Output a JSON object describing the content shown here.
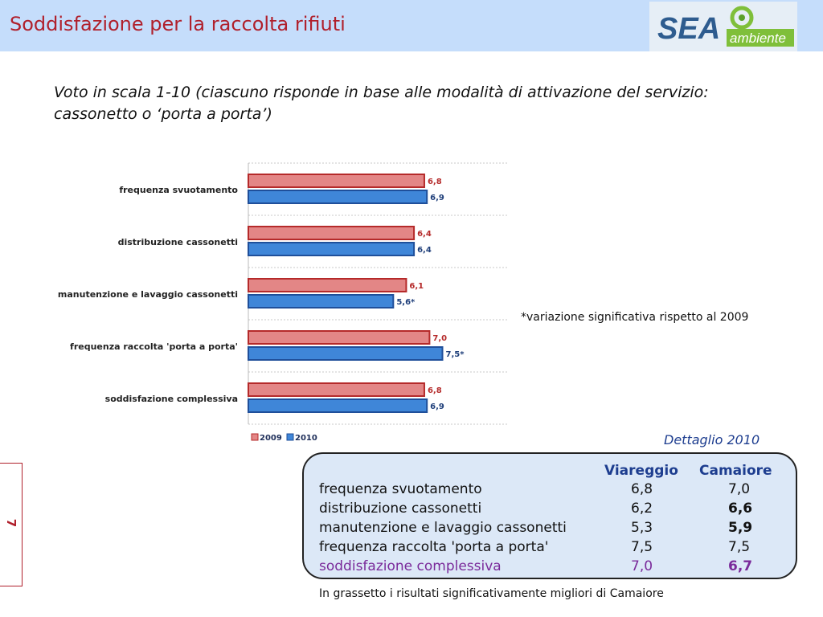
{
  "header": {
    "title": "Soddisfazione per la raccolta rifiuti"
  },
  "logo": {
    "text_sea": "SEA",
    "text_ambiente": "ambiente"
  },
  "subtitle": "Voto in scala 1-10 (ciascuno risponde in base alle modalità di attivazione del servizio: cassonetto o ‘porta a porta’)",
  "note": "*variazione significativa rispetto al 2009",
  "chart_data": {
    "type": "bar",
    "orientation": "horizontal",
    "categories": [
      "frequenza svuotamento",
      "distribuzione cassonetti",
      "manutenzione e lavaggio cassonetti",
      "frequenza raccolta 'porta a porta'",
      "soddisfazione complessiva"
    ],
    "series": [
      {
        "name": "2009",
        "values": [
          6.8,
          6.4,
          6.1,
          7.0,
          6.8
        ],
        "labels": [
          "6,8",
          "6,4",
          "6,1",
          "7,0",
          "6,8"
        ],
        "color": "#e38686"
      },
      {
        "name": "2010",
        "values": [
          6.9,
          6.4,
          5.6,
          7.5,
          6.9
        ],
        "labels": [
          "6,9",
          "6,4",
          "5,6*",
          "7,5*",
          "6,9"
        ],
        "color": "#3f86d8"
      }
    ],
    "xlim": [
      0,
      7.5
    ],
    "grid": true,
    "legend_position": "bottom-left"
  },
  "detail": {
    "caption": "Dettaglio 2010",
    "columns": [
      "Viareggio",
      "Camaiore"
    ],
    "rows": [
      {
        "label": "frequenza svuotamento",
        "viareggio": "6,8",
        "camaiore": "7,0",
        "camaiore_bold": false,
        "highlight": false
      },
      {
        "label": "distribuzione cassonetti",
        "viareggio": "6,2",
        "camaiore": "6,6",
        "camaiore_bold": true,
        "highlight": false
      },
      {
        "label": "manutenzione e lavaggio cassonetti",
        "viareggio": "5,3",
        "camaiore": "5,9",
        "camaiore_bold": true,
        "highlight": false
      },
      {
        "label": "frequenza raccolta 'porta a porta'",
        "viareggio": "7,5",
        "camaiore": "7,5",
        "camaiore_bold": false,
        "highlight": false
      },
      {
        "label": "soddisfazione complessiva",
        "viareggio": "7,0",
        "camaiore": "6,7",
        "camaiore_bold": true,
        "highlight": true
      }
    ]
  },
  "footnote": "In grassetto i risultati significativamente migliori di Camaiore",
  "page_number": "7"
}
